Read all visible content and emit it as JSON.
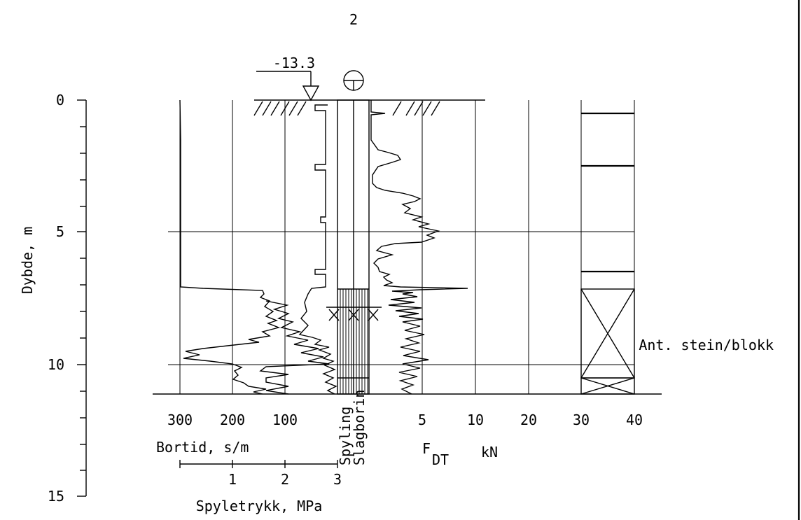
{
  "borehole_number": "2",
  "ground_level": "-13.3",
  "depth_axis": {
    "label": "Dybde, m",
    "ticks": [
      "0",
      "5",
      "10",
      "15"
    ]
  },
  "bortid_axis": {
    "label": "Bortid, s/m",
    "ticks": [
      "300",
      "200",
      "100"
    ]
  },
  "spyletrykk_axis": {
    "label": "Spyletrykk, MPa",
    "ticks": [
      "1",
      "2",
      "3"
    ]
  },
  "method_column": {
    "label_1": "Spyling",
    "label_2": "Slagborin"
  },
  "force_axis": {
    "label_main": "F",
    "label_sub": "DT",
    "label_unit": "kN",
    "ticks": [
      "5",
      "10",
      "20",
      "30",
      "40"
    ]
  },
  "stone_column": {
    "label": "Ant. stein/blokk"
  }
}
